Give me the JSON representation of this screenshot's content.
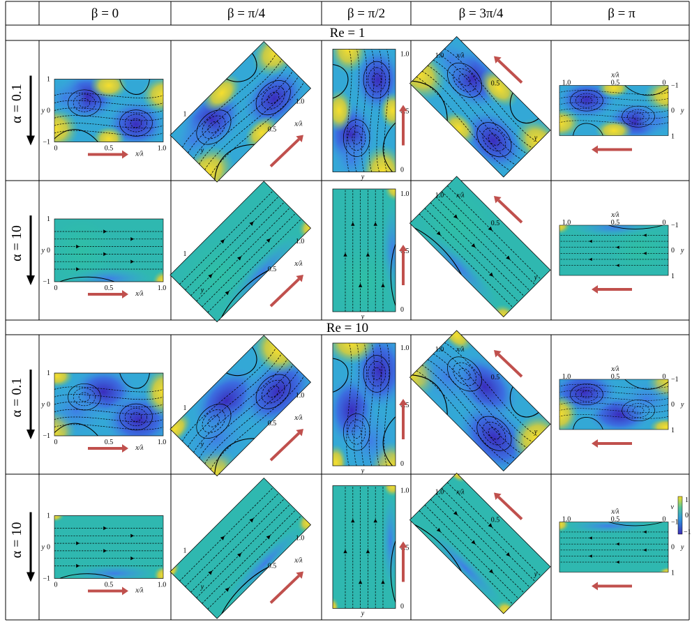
{
  "column_headers": [
    "β = 0",
    "β = π/4",
    "β = π/2",
    "β = 3π/4",
    "β = π"
  ],
  "sections": [
    {
      "label": "Re = 1",
      "rows": [
        {
          "alpha_label": "α = 0.1",
          "variant": "vortex"
        },
        {
          "alpha_label": "α = 10",
          "variant": "shear"
        }
      ]
    },
    {
      "label": "Re = 10",
      "rows": [
        {
          "alpha_label": "α = 0.1",
          "variant": "wave"
        },
        {
          "alpha_label": "α = 10",
          "variant": "uniform"
        }
      ]
    }
  ],
  "axis_labels": {
    "x_axis": "x/λ",
    "y_axis": "y",
    "x_ticks": [
      "0",
      "0.5",
      "1.0"
    ],
    "x_ticks_reversed": [
      "1.0",
      "0.5",
      "0"
    ],
    "y_ticks": [
      "1",
      "0",
      "−1"
    ],
    "y_ticks_reversed": [
      "−1",
      "0",
      "1"
    ]
  },
  "colorbar": {
    "ticks": [
      "1",
      "0",
      "−1"
    ],
    "label": "v",
    "colors": [
      "#f4dc2a",
      "#2db3a0",
      "#3d4fd1"
    ]
  },
  "colors": {
    "arrow_red": "#c0504d",
    "deep_blue": "#3a3bc7",
    "mid_blue": "#2f8fdf",
    "teal": "#22b8a8",
    "yellow": "#f2d53b",
    "orange": "#f0a23a"
  }
}
